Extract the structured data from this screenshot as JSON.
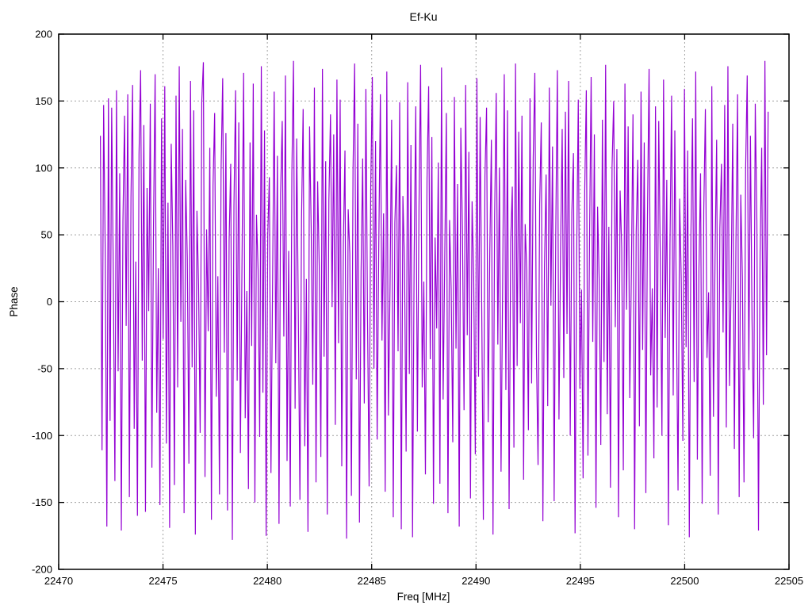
{
  "chart_data": {
    "type": "line",
    "title": "Ef-Ku",
    "xlabel": "Freq [MHz]",
    "ylabel": "Phase",
    "xlim": [
      22470,
      22505
    ],
    "ylim": [
      -200,
      200
    ],
    "xticks": [
      22470,
      22475,
      22480,
      22485,
      22490,
      22495,
      22500,
      22505
    ],
    "yticks": [
      -200,
      -150,
      -100,
      -50,
      0,
      50,
      100,
      150,
      200
    ],
    "grid": true,
    "legend_position": "none",
    "colors": {
      "line": "#9400d3",
      "grid": "#a0a0a0",
      "axis": "#000000",
      "background": "#ffffff"
    },
    "series": [
      {
        "name": "phase",
        "color": "#9400d3",
        "x_start": 22472.0,
        "x_end": 22504.0,
        "y": [
          124,
          -111,
          147,
          36,
          -168,
          152,
          -89,
          145,
          21,
          -134,
          158,
          -52,
          96,
          -171,
          60,
          139,
          -18,
          155,
          -146,
          78,
          162,
          -95,
          30,
          -160,
          110,
          173,
          -44,
          132,
          -157,
          85,
          -7,
          148,
          -124,
          57,
          170,
          -83,
          25,
          -152,
          137,
          -28,
          161,
          -106,
          74,
          -169,
          118,
          42,
          -137,
          154,
          -64,
          176,
          -15,
          129,
          -158,
          91,
          33,
          -121,
          165,
          -49,
          143,
          -174,
          68,
          12,
          -98,
          150,
          179,
          -131,
          54,
          -22,
          115,
          -163,
          87,
          141,
          -71,
          19,
          -144,
          99,
          167,
          -38,
          126,
          -156,
          46,
          103,
          -178,
          72,
          158,
          -59,
          134,
          -113,
          29,
          171,
          -87,
          8,
          -140,
          119,
          -33,
          163,
          -150,
          65,
          24,
          -101,
          176,
          -68,
          128,
          -175,
          50,
          93,
          -128,
          14,
          157,
          -46,
          109,
          -166,
          81,
          135,
          -26,
          169,
          -119,
          38,
          -153,
          97,
          180,
          -80,
          122,
          -9,
          -148,
          62,
          144,
          -108,
          17,
          -172,
          131,
          55,
          -62,
          160,
          -135,
          90,
          27,
          -116,
          174,
          -41,
          105,
          -159,
          76,
          140,
          -4,
          125,
          -92,
          166,
          -31,
          151,
          -123,
          44,
          113,
          -177,
          69,
          36,
          -145,
          98,
          178,
          -58,
          133,
          -165,
          22,
          107,
          -76,
          159,
          -12,
          -138,
          84,
          168,
          -50,
          120,
          -103,
          41,
          155,
          -29,
          66,
          -142,
          172,
          -85,
          11,
          136,
          -161,
          59,
          102,
          -37,
          149,
          -170,
          79,
          28,
          -112,
          164,
          -54,
          117,
          -176,
          34,
          146,
          -97,
          70,
          177,
          -64,
          15,
          -129,
          92,
          161,
          -43,
          123,
          -151,
          48,
          -20,
          104,
          -136,
          175,
          -73,
          31,
          141,
          -158,
          61,
          10,
          -105,
          153,
          -35,
          88,
          -168,
          130,
          53,
          -81,
          162,
          -25,
          112,
          -147,
          75,
          18,
          -114,
          167,
          -56,
          138,
          -5,
          -163,
          94,
          145,
          -90,
          37,
          121,
          -174,
          63,
          156,
          -32,
          100,
          -127,
          13,
          170,
          -66,
          143,
          -155,
          45,
          86,
          -109,
          178,
          -48,
          127,
          -16,
          139,
          -133,
          58,
          23,
          -96,
          152,
          -61,
          108,
          171,
          -40,
          -122,
          73,
          134,
          -164,
          26,
          95,
          -78,
          160,
          -3,
          116,
          -149,
          51,
          173,
          -88,
          39,
          129,
          -57,
          142,
          -24,
          165,
          -100,
          67,
          111,
          -173,
          35,
          151,
          -65,
          9,
          -132,
          82,
          158,
          -115,
          47,
          168,
          -30,
          125,
          -154,
          71,
          16,
          -107,
          136,
          -45,
          177,
          -84,
          56,
          -139,
          101,
          150,
          -19,
          114,
          -161,
          83,
          40,
          -126,
          163,
          -6,
          131,
          -72,
          21,
          140,
          -170,
          52,
          106,
          -93,
          157,
          -36,
          119,
          -143,
          64,
          174,
          -55,
          10,
          -117,
          146,
          -79,
          135,
          30,
          -100,
          166,
          -27,
          91,
          -167,
          43,
          154,
          -70,
          128,
          -11,
          -141,
          77,
          17,
          -104,
          159,
          -34,
          113,
          -176,
          49,
          137,
          -60,
          172,
          -118,
          25,
          96,
          -151,
          68,
          144,
          -42,
          7,
          -130,
          161,
          -86,
          32,
          121,
          -159,
          55,
          103,
          -23,
          147,
          -94,
          176,
          -63,
          12,
          133,
          -110,
          44,
          155,
          -146,
          80,
          18,
          -135,
          99,
          169,
          -51,
          124,
          -14,
          -102,
          148,
          60,
          -171,
          37,
          115,
          -77,
          180,
          -40,
          142
        ]
      }
    ]
  }
}
